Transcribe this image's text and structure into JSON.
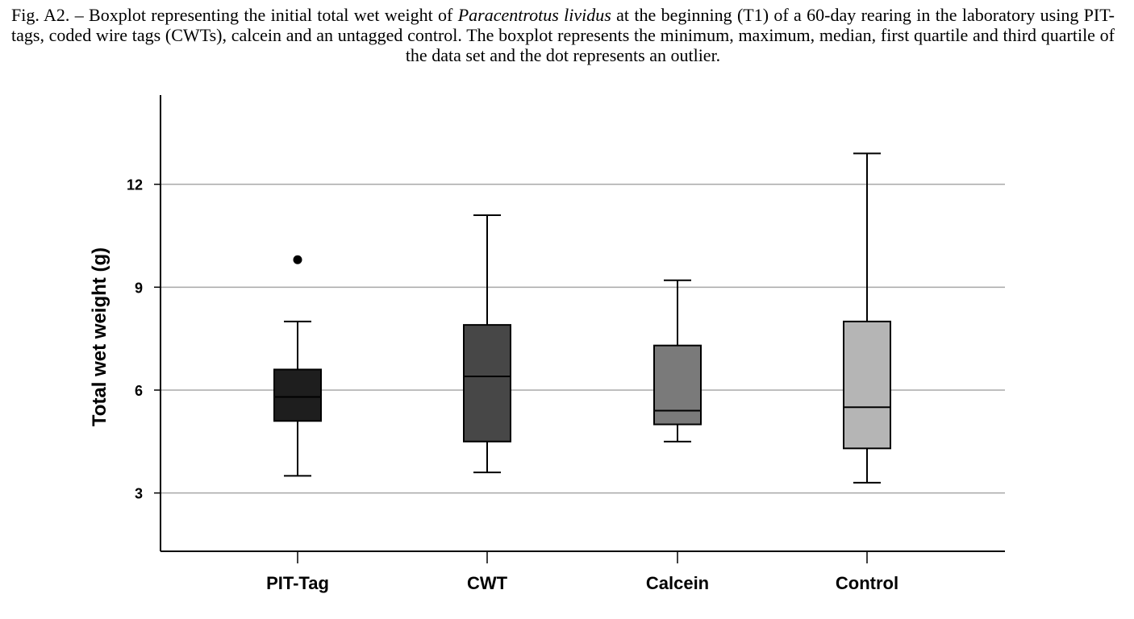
{
  "caption": {
    "prefix": "Fig. A2. – Boxplot representing the initial total wet weight of ",
    "species": "Paracentrotus lividus",
    "suffix": " at the beginning (T1) of a 60-day rearing in the laboratory using PIT-tags, coded wire tags (CWTs), calcein and an untagged control. The boxplot represents the minimum, maximum, median, first quartile and third quartile of the data set and the dot represents an outlier."
  },
  "chart_data": {
    "type": "boxplot",
    "title": "",
    "xlabel": "",
    "ylabel": "Total wet weight (g)",
    "ylim": [
      1.3,
      14.6
    ],
    "yticks": [
      3,
      6,
      9,
      12
    ],
    "grid": "horizontal",
    "categories": [
      "PIT-Tag",
      "CWT",
      "Calcein",
      "Control"
    ],
    "boxes": [
      {
        "category": "PIT-Tag",
        "min": 3.5,
        "q1": 5.1,
        "median": 5.8,
        "q3": 6.6,
        "max": 8.0,
        "outliers": [
          9.8
        ],
        "color": "#1e1e1e"
      },
      {
        "category": "CWT",
        "min": 3.6,
        "q1": 4.5,
        "median": 6.4,
        "q3": 7.9,
        "max": 11.1,
        "outliers": [],
        "color": "#474747"
      },
      {
        "category": "Calcein",
        "min": 4.5,
        "q1": 5.0,
        "median": 5.4,
        "q3": 7.3,
        "max": 9.2,
        "outliers": [],
        "color": "#7a7a7a"
      },
      {
        "category": "Control",
        "min": 3.3,
        "q1": 4.3,
        "median": 5.5,
        "q3": 8.0,
        "max": 12.9,
        "outliers": [],
        "color": "#b5b5b5"
      }
    ]
  }
}
